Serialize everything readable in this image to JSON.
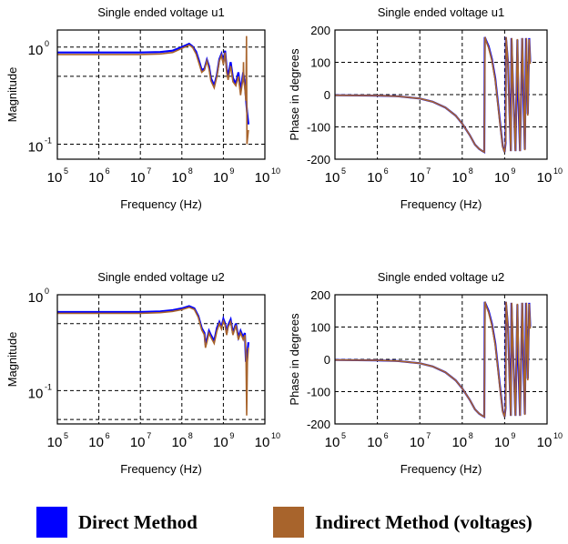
{
  "legend": {
    "direct": {
      "label": "Direct Method",
      "color": "#0000ff"
    },
    "indirect": {
      "label": "Indirect Method (voltages)",
      "color": "#a8642c"
    }
  },
  "chart_data": [
    {
      "type": "line",
      "title": "Single ended voltage u1",
      "xlabel": "Frequency (Hz)",
      "ylabel": "Magnitude",
      "xscale": "log",
      "yscale": "log",
      "xlim": [
        100000,
        10000000000
      ],
      "ylim": [
        0.07,
        1.5
      ],
      "xticks": [
        "5",
        "6",
        "7",
        "8",
        "9",
        "10"
      ],
      "yticks": [
        "0",
        "-1"
      ],
      "grid": true,
      "series": [
        {
          "key": "direct",
          "color": "#0000ff",
          "x": [
            100000,
            1000000,
            10000000,
            30000000,
            60000000,
            100000000,
            150000000,
            180000000,
            220000000,
            260000000,
            300000000,
            350000000,
            400000000,
            450000000,
            500000000,
            600000000,
            700000000,
            800000000,
            900000000,
            1000000000,
            1100000000,
            1200000000,
            1300000000,
            1500000000,
            1700000000,
            2000000000,
            2300000000,
            2600000000,
            3000000000,
            3300000000,
            3500000000,
            3700000000,
            4000000000
          ],
          "y": [
            0.88,
            0.88,
            0.88,
            0.89,
            0.92,
            1.0,
            1.08,
            1.02,
            0.9,
            0.72,
            0.58,
            0.6,
            0.74,
            0.64,
            0.48,
            0.4,
            0.52,
            0.75,
            0.85,
            0.7,
            0.92,
            0.6,
            0.5,
            0.7,
            0.48,
            0.42,
            0.55,
            0.35,
            0.55,
            0.42,
            0.3,
            0.22,
            0.16
          ]
        },
        {
          "key": "indirect",
          "color": "#a8642c",
          "x": [
            100000,
            1000000,
            10000000,
            30000000,
            60000000,
            100000000,
            150000000,
            180000000,
            220000000,
            260000000,
            300000000,
            350000000,
            400000000,
            450000000,
            500000000,
            600000000,
            700000000,
            800000000,
            900000000,
            1000000000,
            1100000000,
            1200000000,
            1300000000,
            1500000000,
            1700000000,
            2000000000,
            2300000000,
            2600000000,
            3000000000,
            3050000000,
            3100000000,
            3300000000,
            3500000000,
            3600000000,
            3700000000,
            4000000000
          ],
          "y": [
            0.84,
            0.84,
            0.84,
            0.85,
            0.88,
            0.97,
            1.05,
            1.0,
            0.85,
            0.68,
            0.55,
            0.58,
            0.72,
            0.6,
            0.45,
            0.38,
            0.5,
            0.72,
            0.82,
            0.66,
            0.88,
            0.55,
            0.46,
            0.64,
            0.44,
            0.4,
            0.5,
            0.32,
            0.5,
            0.7,
            0.45,
            0.38,
            0.28,
            1.3,
            0.1,
            0.14
          ]
        }
      ]
    },
    {
      "type": "line",
      "title": "Single ended voltage u1",
      "xlabel": "Frequency (Hz)",
      "ylabel": "Phase in degrees",
      "xscale": "log",
      "yscale": "linear",
      "xlim": [
        100000,
        10000000000
      ],
      "ylim": [
        -200,
        200
      ],
      "xticks": [
        "5",
        "6",
        "7",
        "8",
        "9",
        "10"
      ],
      "yticks": [
        "200",
        "100",
        "0",
        "-100",
        "-200"
      ],
      "grid": true,
      "series": [
        {
          "key": "direct",
          "color": "#0000ff",
          "x": [
            100000,
            1000000,
            3000000,
            10000000,
            20000000,
            40000000,
            70000000,
            100000000,
            150000000,
            200000000,
            250000000,
            300000000,
            330000000,
            340000000,
            360000000,
            420000000,
            500000000,
            600000000,
            700000000,
            800000000,
            900000000,
            1000000000,
            1050000000,
            1070000000,
            1200000000,
            1300000000,
            1400000000,
            1450000000,
            1600000000,
            1800000000,
            2000000000,
            2100000000,
            2300000000,
            2600000000,
            2800000000,
            3000000000,
            3200000000,
            3500000000,
            3800000000,
            4000000000
          ],
          "y": [
            -2,
            -3,
            -5,
            -12,
            -22,
            -40,
            -65,
            -90,
            -125,
            -155,
            -168,
            -175,
            -178,
            178,
            170,
            150,
            110,
            50,
            -30,
            -100,
            -160,
            -178,
            -150,
            178,
            100,
            -50,
            -175,
            175,
            0,
            -175,
            170,
            -10,
            -175,
            175,
            -30,
            -170,
            175,
            -60,
            175,
            100
          ]
        },
        {
          "key": "indirect",
          "color": "#a8642c",
          "x": [
            100000,
            1000000,
            3000000,
            10000000,
            20000000,
            40000000,
            70000000,
            100000000,
            150000000,
            200000000,
            250000000,
            300000000,
            330000000,
            345000000,
            360000000,
            420000000,
            500000000,
            600000000,
            700000000,
            800000000,
            900000000,
            1000000000,
            1060000000,
            1080000000,
            1200000000,
            1300000000,
            1400000000,
            1470000000,
            1600000000,
            1800000000,
            2000000000,
            2150000000,
            2300000000,
            2600000000,
            2850000000,
            3000000000,
            3250000000,
            3500000000,
            3800000000,
            4000000000
          ],
          "y": [
            -2,
            -3,
            -5,
            -12,
            -22,
            -40,
            -65,
            -90,
            -125,
            -155,
            -168,
            -175,
            -178,
            178,
            168,
            145,
            105,
            45,
            -35,
            -105,
            -162,
            -178,
            -140,
            178,
            95,
            -55,
            -175,
            175,
            -5,
            -175,
            172,
            -15,
            -175,
            175,
            -35,
            -172,
            175,
            -65,
            172,
            95
          ]
        }
      ]
    },
    {
      "type": "line",
      "title": "Single ended voltage u2",
      "xlabel": "Frequency (Hz)",
      "ylabel": "Magnitude",
      "xscale": "log",
      "yscale": "log",
      "xlim": [
        100000,
        10000000000
      ],
      "ylim": [
        0.045,
        1.0
      ],
      "xticks": [
        "5",
        "6",
        "7",
        "8",
        "9",
        "10"
      ],
      "yticks": [
        "0",
        "-1"
      ],
      "grid": true,
      "series": [
        {
          "key": "direct",
          "color": "#0000ff",
          "x": [
            100000,
            1000000,
            10000000,
            30000000,
            60000000,
            100000000,
            150000000,
            200000000,
            250000000,
            300000000,
            350000000,
            370000000,
            400000000,
            450000000,
            500000000,
            600000000,
            700000000,
            800000000,
            900000000,
            1000000000,
            1100000000,
            1200000000,
            1300000000,
            1500000000,
            1700000000,
            2000000000,
            2300000000,
            2600000000,
            3000000000,
            3300000000,
            3500000000,
            3700000000,
            4000000000
          ],
          "y": [
            0.66,
            0.66,
            0.66,
            0.67,
            0.69,
            0.72,
            0.76,
            0.72,
            0.6,
            0.45,
            0.4,
            0.3,
            0.34,
            0.42,
            0.38,
            0.33,
            0.45,
            0.52,
            0.46,
            0.56,
            0.5,
            0.4,
            0.48,
            0.55,
            0.4,
            0.5,
            0.36,
            0.42,
            0.36,
            0.4,
            0.2,
            0.22,
            0.32
          ]
        },
        {
          "key": "indirect",
          "color": "#a8642c",
          "x": [
            100000,
            1000000,
            10000000,
            30000000,
            60000000,
            100000000,
            150000000,
            200000000,
            250000000,
            300000000,
            350000000,
            370000000,
            400000000,
            450000000,
            500000000,
            600000000,
            700000000,
            800000000,
            900000000,
            1000000000,
            1100000000,
            1200000000,
            1300000000,
            1500000000,
            1700000000,
            2000000000,
            2300000000,
            2600000000,
            3000000000,
            3300000000,
            3500000000,
            3650000000,
            3800000000,
            4000000000
          ],
          "y": [
            0.64,
            0.64,
            0.64,
            0.65,
            0.67,
            0.7,
            0.74,
            0.7,
            0.58,
            0.43,
            0.38,
            0.28,
            0.32,
            0.4,
            0.36,
            0.31,
            0.42,
            0.5,
            0.44,
            0.53,
            0.48,
            0.38,
            0.46,
            0.52,
            0.38,
            0.48,
            0.34,
            0.4,
            0.34,
            0.38,
            0.25,
            0.055,
            0.2,
            0.28
          ]
        }
      ]
    },
    {
      "type": "line",
      "title": "Single ended voltage u2",
      "xlabel": "Frequency (Hz)",
      "ylabel": "Phase in degrees",
      "xscale": "log",
      "yscale": "linear",
      "xlim": [
        100000,
        10000000000
      ],
      "ylim": [
        -200,
        200
      ],
      "xticks": [
        "5",
        "6",
        "7",
        "8",
        "9",
        "10"
      ],
      "yticks": [
        "200",
        "100",
        "0",
        "-100",
        "-200"
      ],
      "grid": true,
      "series": [
        {
          "key": "direct",
          "color": "#0000ff",
          "x": [
            100000,
            1000000,
            3000000,
            10000000,
            20000000,
            40000000,
            70000000,
            100000000,
            150000000,
            200000000,
            250000000,
            300000000,
            330000000,
            340000000,
            360000000,
            420000000,
            500000000,
            600000000,
            700000000,
            800000000,
            900000000,
            1000000000,
            1050000000,
            1070000000,
            1200000000,
            1300000000,
            1400000000,
            1450000000,
            1600000000,
            1800000000,
            2000000000,
            2100000000,
            2300000000,
            2600000000,
            2800000000,
            3000000000,
            3200000000,
            3500000000,
            3800000000,
            4000000000
          ],
          "y": [
            -2,
            -3,
            -5,
            -12,
            -22,
            -40,
            -65,
            -90,
            -125,
            -155,
            -168,
            -175,
            -178,
            178,
            170,
            150,
            110,
            50,
            -30,
            -100,
            -160,
            -178,
            -150,
            178,
            100,
            -50,
            -175,
            175,
            0,
            -175,
            170,
            -10,
            -175,
            175,
            -30,
            -170,
            175,
            -60,
            175,
            100
          ]
        },
        {
          "key": "indirect",
          "color": "#a8642c",
          "x": [
            100000,
            1000000,
            3000000,
            10000000,
            20000000,
            40000000,
            70000000,
            100000000,
            150000000,
            200000000,
            250000000,
            300000000,
            330000000,
            345000000,
            360000000,
            420000000,
            500000000,
            600000000,
            700000000,
            800000000,
            900000000,
            1000000000,
            1060000000,
            1080000000,
            1200000000,
            1300000000,
            1400000000,
            1470000000,
            1600000000,
            1800000000,
            2000000000,
            2150000000,
            2300000000,
            2600000000,
            2850000000,
            3000000000,
            3250000000,
            3500000000,
            3800000000,
            4000000000
          ],
          "y": [
            -2,
            -3,
            -5,
            -12,
            -22,
            -40,
            -65,
            -90,
            -125,
            -155,
            -168,
            -175,
            -178,
            178,
            168,
            145,
            105,
            45,
            -35,
            -105,
            -162,
            -178,
            -140,
            178,
            95,
            -55,
            -175,
            175,
            -5,
            -175,
            172,
            -15,
            -175,
            175,
            -35,
            -172,
            175,
            -65,
            172,
            95
          ]
        }
      ]
    }
  ]
}
